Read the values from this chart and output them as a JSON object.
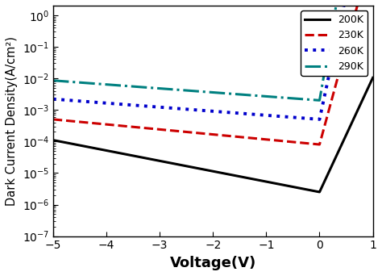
{
  "xlabel": "Voltage(V)",
  "ylabel": "Dark Current Density(A/cm²)",
  "xlim": [
    -5,
    1
  ],
  "ylim": [
    1e-07,
    2.0
  ],
  "xticks": [
    -5,
    -4,
    -3,
    -2,
    -1,
    0,
    1
  ],
  "background_color": "#ffffff",
  "curves": [
    {
      "label": "200K",
      "color": "#000000",
      "ls": "-",
      "lw": 2.2,
      "Is": 2.5e-06,
      "n_vt": 0.12,
      "Irev_at_neg5": 0.00011,
      "Irev_at_0": 2.5e-06,
      "rev_power": 0.6
    },
    {
      "label": "230K",
      "color": "#cc0000",
      "ls": "--",
      "lw": 2.2,
      "Is": 8e-05,
      "n_vt": 0.07,
      "Irev_at_neg5": 0.0005,
      "Irev_at_0": 8e-05,
      "rev_power": 0.22
    },
    {
      "label": "260K",
      "color": "#0000cc",
      "ls": ":",
      "lw": 2.8,
      "Is": 0.0005,
      "n_vt": 0.055,
      "Irev_at_neg5": 0.0022,
      "Irev_at_0": 0.0005,
      "rev_power": 0.18
    },
    {
      "label": "290K",
      "color": "#008080",
      "ls": "-.",
      "lw": 2.2,
      "Is": 0.002,
      "n_vt": 0.045,
      "Irev_at_neg5": 0.0085,
      "Irev_at_0": 0.002,
      "rev_power": 0.12
    }
  ],
  "legend_loc": "upper right",
  "legend_fontsize": 9,
  "tick_fontsize": 10,
  "xlabel_fontsize": 13,
  "ylabel_fontsize": 10.5
}
